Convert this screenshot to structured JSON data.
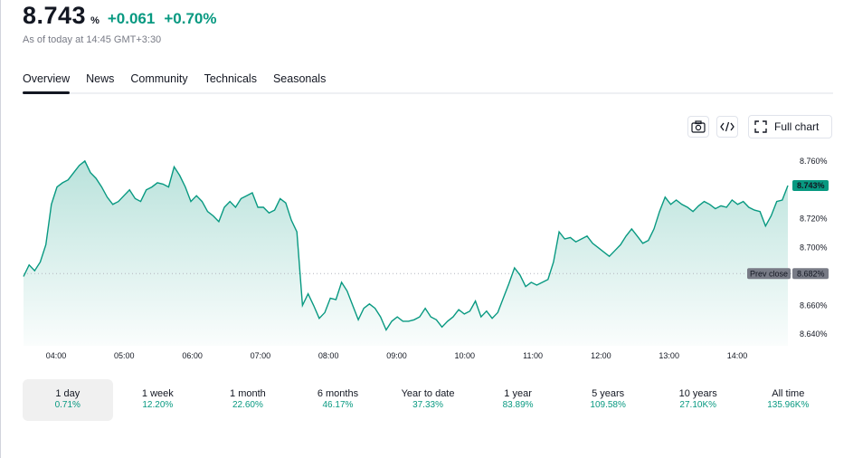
{
  "header": {
    "price": "8.743",
    "unit": "%",
    "change_abs": "+0.061",
    "change_pct": "+0.70%",
    "as_of": "As of today at 14:45 GMT+3:30"
  },
  "tabs": [
    {
      "label": "Overview",
      "active": true
    },
    {
      "label": "News"
    },
    {
      "label": "Community"
    },
    {
      "label": "Technicals"
    },
    {
      "label": "Seasonals"
    }
  ],
  "toolbar": {
    "snapshot_icon": "camera-icon",
    "embed_icon": "code-icon",
    "full_chart_icon": "fullscreen-icon",
    "full_chart_label": "Full chart"
  },
  "chart_data": {
    "type": "area",
    "xlabels": [
      "04:00",
      "05:00",
      "06:00",
      "07:00",
      "08:00",
      "09:00",
      "10:00",
      "11:00",
      "12:00",
      "13:00",
      "14:00"
    ],
    "yticks": [
      "8.760%",
      "8.720%",
      "8.700%",
      "8.660%",
      "8.640%"
    ],
    "ylim": [
      8.632,
      8.77
    ],
    "prev_close": 8.682,
    "prev_close_label": "Prev close",
    "prev_close_value": "8.682%",
    "last_value_label": "8.743%",
    "color": "#089981",
    "series": [
      {
        "values": [
          8.68,
          8.688,
          8.684,
          8.69,
          8.702,
          8.73,
          8.742,
          8.745,
          8.747,
          8.752,
          8.757,
          8.76,
          8.752,
          8.748,
          8.742,
          8.735,
          8.73,
          8.732,
          8.736,
          8.74,
          8.734,
          8.732,
          8.74,
          8.742,
          8.745,
          8.744,
          8.742,
          8.756,
          8.75,
          8.742,
          8.732,
          8.736,
          8.732,
          8.725,
          8.722,
          8.718,
          8.728,
          8.732,
          8.728,
          8.734,
          8.736,
          8.738,
          8.728,
          8.728,
          8.724,
          8.726,
          8.734,
          8.731,
          8.719,
          8.711,
          8.66,
          8.668,
          8.66,
          8.651,
          8.655,
          8.665,
          8.664,
          8.676,
          8.67,
          8.66,
          8.65,
          8.658,
          8.661,
          8.658,
          8.652,
          8.643,
          8.649,
          8.652,
          8.649,
          8.649,
          8.65,
          8.652,
          8.658,
          8.652,
          8.65,
          8.645,
          8.649,
          8.652,
          8.657,
          8.654,
          8.656,
          8.663,
          8.652,
          8.656,
          8.651,
          8.655,
          8.665,
          8.675,
          8.686,
          8.681,
          8.673,
          8.676,
          8.674,
          8.676,
          8.678,
          8.69,
          8.711,
          8.706,
          8.707,
          8.704,
          8.706,
          8.708,
          8.703,
          8.7,
          8.697,
          8.694,
          8.698,
          8.702,
          8.708,
          8.713,
          8.708,
          8.703,
          8.705,
          8.713,
          8.725,
          8.735,
          8.73,
          8.733,
          8.73,
          8.728,
          8.725,
          8.729,
          8.732,
          8.73,
          8.727,
          8.729,
          8.728,
          8.733,
          8.73,
          8.732,
          8.728,
          8.726,
          8.725,
          8.715,
          8.722,
          8.732,
          8.733,
          8.743
        ]
      }
    ]
  },
  "periods": [
    {
      "label": "1 day",
      "value": "0.71%",
      "active": true
    },
    {
      "label": "1 week",
      "value": "12.20%"
    },
    {
      "label": "1 month",
      "value": "22.60%"
    },
    {
      "label": "6 months",
      "value": "46.17%"
    },
    {
      "label": "Year to date",
      "value": "37.33%"
    },
    {
      "label": "1 year",
      "value": "83.89%"
    },
    {
      "label": "5 years",
      "value": "109.58%"
    },
    {
      "label": "10 years",
      "value": "27.10K%"
    },
    {
      "label": "All time",
      "value": "135.96K%"
    }
  ]
}
